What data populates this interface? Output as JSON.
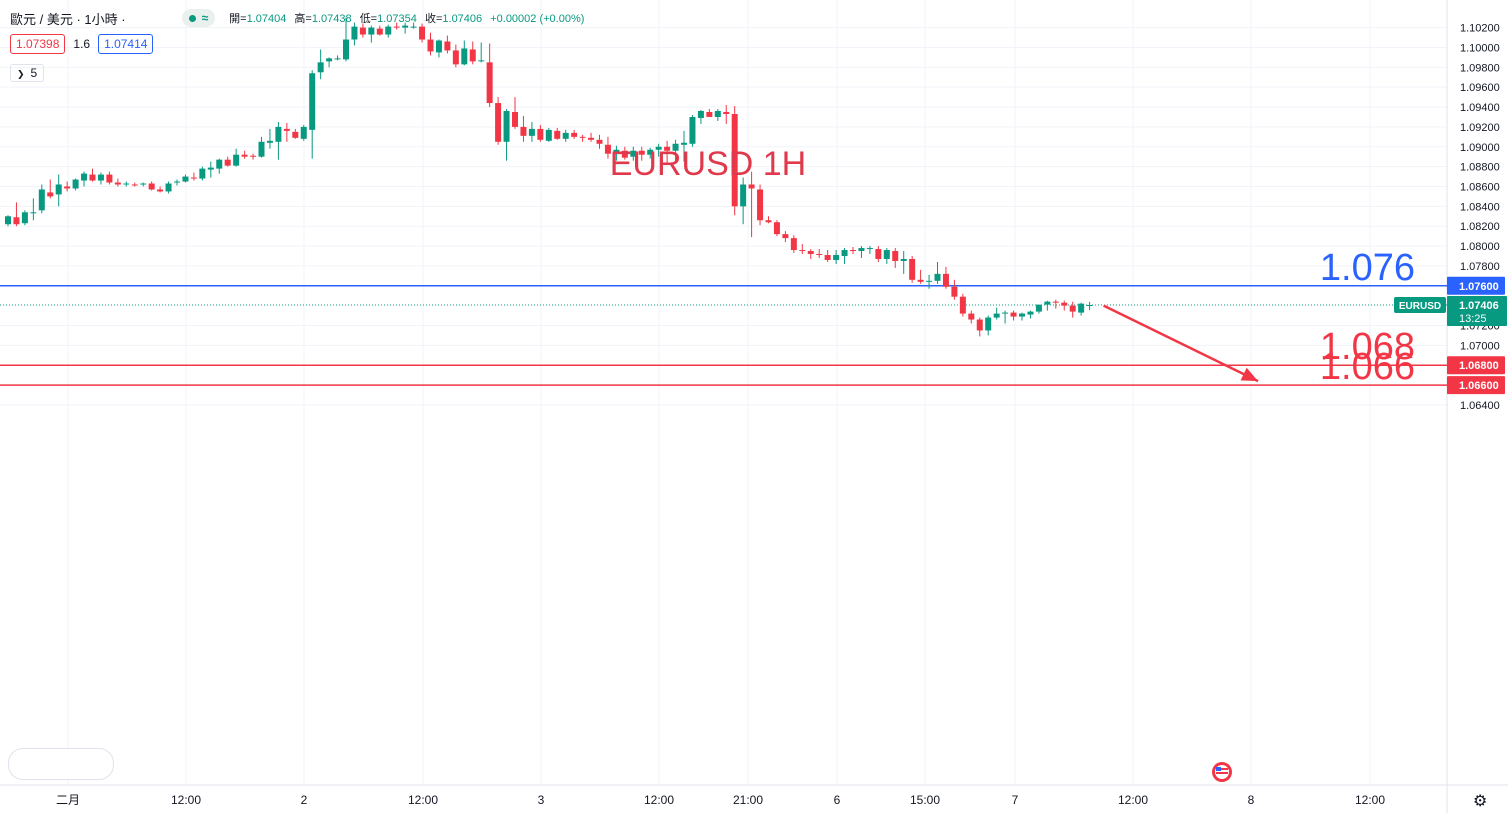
{
  "header": {
    "symbol": "歐元 / 美元 · 1小時 ·",
    "status_wave": "≈",
    "ohlc": [
      {
        "label": "開=",
        "value": "1.07404"
      },
      {
        "label": "高=",
        "value": "1.07438"
      },
      {
        "label": "低=",
        "value": "1.07354"
      },
      {
        "label": "收=",
        "value": "1.07406"
      },
      {
        "label": "",
        "value": "+0.00002 (+0.00%)"
      }
    ]
  },
  "quote": {
    "sell": "1.07398",
    "spread": "1.6",
    "buy": "1.07414"
  },
  "indicators_count": "5",
  "colors": {
    "up": "#089981",
    "down": "#f23645",
    "blue_line": "#2962ff",
    "red_line": "#f23645",
    "annotation": "#e0394c"
  },
  "chart_data": {
    "type": "candlestick",
    "title": "EURUSD 1H",
    "ylim": [
      1.064,
      1.1028
    ],
    "y_ticks": [
      "1.10200",
      "1.10000",
      "1.09800",
      "1.09600",
      "1.09400",
      "1.09200",
      "1.09000",
      "1.08800",
      "1.08600",
      "1.08400",
      "1.08200",
      "1.08000",
      "1.07800",
      "1.07200",
      "1.07000",
      "1.06400"
    ],
    "x_ticks": [
      "二月",
      "12:00",
      "2",
      "12:00",
      "3",
      "12:00",
      "21:00",
      "6",
      "15:00",
      "7",
      "12:00",
      "8",
      "12:00"
    ],
    "current_price": {
      "symbol": "EURUSD",
      "value": "1.07406",
      "countdown": "13:25",
      "price": 1.07406
    },
    "horizontal_levels": [
      {
        "label": "1.076",
        "axis_label": "1.07600",
        "value": 1.076,
        "color": "#2962ff"
      },
      {
        "label": "1.068",
        "axis_label": "1.06800",
        "value": 1.068,
        "color": "#f23645"
      },
      {
        "label": "1.066",
        "axis_label": "1.06600",
        "value": 1.066,
        "color": "#f23645"
      }
    ],
    "arrow": {
      "from": 1.074,
      "to": 1.0664,
      "color": "#f23645"
    },
    "candles": [
      [
        1.0822,
        1.0831,
        1.082,
        1.083
      ],
      [
        1.0829,
        1.0844,
        1.082,
        1.0822
      ],
      [
        1.0823,
        1.0836,
        1.0821,
        1.0834
      ],
      [
        1.0833,
        1.0848,
        1.0826,
        1.0834
      ],
      [
        1.0836,
        1.0862,
        1.0833,
        1.0857
      ],
      [
        1.0854,
        1.0867,
        1.0848,
        1.085
      ],
      [
        1.0852,
        1.0872,
        1.084,
        1.0862
      ],
      [
        1.086,
        1.0865,
        1.0855,
        1.0858
      ],
      [
        1.0858,
        1.0868,
        1.0856,
        1.0867
      ],
      [
        1.0866,
        1.0875,
        1.086,
        1.0873
      ],
      [
        1.0872,
        1.0878,
        1.0865,
        1.0866
      ],
      [
        1.0866,
        1.0874,
        1.0862,
        1.0872
      ],
      [
        1.0872,
        1.0875,
        1.0862,
        1.0864
      ],
      [
        1.0864,
        1.0868,
        1.086,
        1.0862
      ],
      [
        1.0862,
        1.0865,
        1.086,
        1.0863
      ],
      [
        1.0862,
        1.0864,
        1.086,
        1.0861
      ],
      [
        1.0862,
        1.0864,
        1.086,
        1.0863
      ],
      [
        1.0863,
        1.0865,
        1.0856,
        1.0857
      ],
      [
        1.0857,
        1.086,
        1.0854,
        1.0855
      ],
      [
        1.0855,
        1.0865,
        1.0853,
        1.0863
      ],
      [
        1.0864,
        1.0867,
        1.0861,
        1.0865
      ],
      [
        1.0865,
        1.0872,
        1.0864,
        1.087
      ],
      [
        1.0869,
        1.0874,
        1.0866,
        1.0868
      ],
      [
        1.0868,
        1.088,
        1.0866,
        1.0878
      ],
      [
        1.0877,
        1.0885,
        1.0869,
        1.0879
      ],
      [
        1.0878,
        1.0888,
        1.0873,
        1.0887
      ],
      [
        1.0887,
        1.089,
        1.088,
        1.0881
      ],
      [
        1.0881,
        1.0898,
        1.088,
        1.0892
      ],
      [
        1.0892,
        1.0896,
        1.0888,
        1.089
      ],
      [
        1.0891,
        1.0893,
        1.0887,
        1.089
      ],
      [
        1.089,
        1.091,
        1.0889,
        1.0905
      ],
      [
        1.0904,
        1.0918,
        1.0898,
        1.0906
      ],
      [
        1.0905,
        1.0925,
        1.0887,
        1.092
      ],
      [
        1.0918,
        1.0924,
        1.0905,
        1.0916
      ],
      [
        1.0915,
        1.0918,
        1.0908,
        1.0909
      ],
      [
        1.0908,
        1.0922,
        1.0906,
        1.092
      ],
      [
        1.0917,
        1.0977,
        1.0888,
        1.0974
      ],
      [
        1.0975,
        1.0998,
        1.0968,
        1.0985
      ],
      [
        1.0986,
        1.099,
        1.098,
        1.0989
      ],
      [
        1.0988,
        1.0992,
        1.0987,
        1.0989
      ],
      [
        1.0988,
        1.103,
        1.0986,
        1.1008
      ],
      [
        1.1008,
        1.1025,
        1.1002,
        1.1021
      ],
      [
        1.102,
        1.1024,
        1.101,
        1.1013
      ],
      [
        1.1013,
        1.1022,
        1.1005,
        1.102
      ],
      [
        1.1019,
        1.1022,
        1.1012,
        1.1013
      ],
      [
        1.1013,
        1.1023,
        1.101,
        1.1021
      ],
      [
        1.1021,
        1.1025,
        1.1018,
        1.102
      ],
      [
        1.102,
        1.1025,
        1.1014,
        1.1022
      ],
      [
        1.1021,
        1.1025,
        1.1019,
        1.1021
      ],
      [
        1.1021,
        1.1024,
        1.1005,
        1.1008
      ],
      [
        1.1008,
        1.1015,
        1.0992,
        1.0996
      ],
      [
        1.0995,
        1.1008,
        1.099,
        1.1007
      ],
      [
        1.1006,
        1.1012,
        1.0994,
        1.0997
      ],
      [
        1.0997,
        1.1003,
        1.098,
        1.0983
      ],
      [
        1.0983,
        1.1007,
        1.0982,
        1.0999
      ],
      [
        1.0998,
        1.1006,
        1.0983,
        1.0986
      ],
      [
        1.0987,
        1.1005,
        1.0985,
        1.0987
      ],
      [
        1.0985,
        1.1004,
        1.094,
        1.0944
      ],
      [
        1.0944,
        1.095,
        1.0902,
        1.0905
      ],
      [
        1.0905,
        1.0938,
        1.0886,
        1.0936
      ],
      [
        1.0935,
        1.095,
        1.0918,
        1.092
      ],
      [
        1.092,
        1.0931,
        1.0905,
        1.0911
      ],
      [
        1.0911,
        1.0925,
        1.0905,
        1.0918
      ],
      [
        1.0918,
        1.0922,
        1.0905,
        1.0907
      ],
      [
        1.0906,
        1.0919,
        1.0905,
        1.0917
      ],
      [
        1.0916,
        1.0919,
        1.0907,
        1.0908
      ],
      [
        1.0908,
        1.0917,
        1.0905,
        1.0914
      ],
      [
        1.0914,
        1.0917,
        1.0908,
        1.091
      ],
      [
        1.091,
        1.0912,
        1.0905,
        1.0909
      ],
      [
        1.0909,
        1.0914,
        1.0905,
        1.0907
      ],
      [
        1.0907,
        1.0912,
        1.0898,
        1.0903
      ],
      [
        1.0902,
        1.091,
        1.0888,
        1.0893
      ],
      [
        1.0893,
        1.0901,
        1.0886,
        1.0897
      ],
      [
        1.0896,
        1.09,
        1.0887,
        1.0889
      ],
      [
        1.089,
        1.09,
        1.0886,
        1.0896
      ],
      [
        1.0896,
        1.09,
        1.0886,
        1.0892
      ],
      [
        1.0892,
        1.0899,
        1.0888,
        1.0897
      ],
      [
        1.0897,
        1.0903,
        1.089,
        1.09
      ],
      [
        1.09,
        1.0906,
        1.0882,
        1.0896
      ],
      [
        1.0896,
        1.0907,
        1.0883,
        1.0903
      ],
      [
        1.0902,
        1.0916,
        1.0885,
        1.0904
      ],
      [
        1.0903,
        1.0932,
        1.09,
        1.093
      ],
      [
        1.0929,
        1.0937,
        1.0923,
        1.0936
      ],
      [
        1.0935,
        1.0938,
        1.093,
        1.093
      ],
      [
        1.093,
        1.0938,
        1.0926,
        1.0936
      ],
      [
        1.0935,
        1.0942,
        1.0923,
        1.0933
      ],
      [
        1.0933,
        1.0941,
        1.0831,
        1.084
      ],
      [
        1.084,
        1.0869,
        1.0822,
        1.0862
      ],
      [
        1.0862,
        1.0875,
        1.0809,
        1.0858
      ],
      [
        1.0857,
        1.0862,
        1.0821,
        1.0826
      ],
      [
        1.0826,
        1.083,
        1.0823,
        1.0824
      ],
      [
        1.0824,
        1.0826,
        1.081,
        1.0812
      ],
      [
        1.0812,
        1.0815,
        1.0804,
        1.0808
      ],
      [
        1.0808,
        1.0811,
        1.0793,
        1.0796
      ],
      [
        1.0796,
        1.0802,
        1.0792,
        1.0795
      ],
      [
        1.0795,
        1.0797,
        1.0787,
        1.0792
      ],
      [
        1.0792,
        1.0797,
        1.0788,
        1.0791
      ],
      [
        1.0791,
        1.0796,
        1.0784,
        1.0786
      ],
      [
        1.0786,
        1.0796,
        1.0782,
        1.0791
      ],
      [
        1.079,
        1.0798,
        1.0782,
        1.0796
      ],
      [
        1.0796,
        1.0799,
        1.0792,
        1.0795
      ],
      [
        1.0795,
        1.08,
        1.0788,
        1.0798
      ],
      [
        1.0797,
        1.08,
        1.0792,
        1.0798
      ],
      [
        1.0797,
        1.08,
        1.0784,
        1.0787
      ],
      [
        1.0787,
        1.0798,
        1.0782,
        1.0796
      ],
      [
        1.0795,
        1.0798,
        1.0778,
        1.0785
      ],
      [
        1.0785,
        1.0795,
        1.0772,
        1.0787
      ],
      [
        1.0787,
        1.079,
        1.0763,
        1.0766
      ],
      [
        1.0766,
        1.0776,
        1.0762,
        1.0764
      ],
      [
        1.0764,
        1.0771,
        1.0757,
        1.0765
      ],
      [
        1.0765,
        1.0784,
        1.0762,
        1.0772
      ],
      [
        1.0772,
        1.0779,
        1.0757,
        1.0759
      ],
      [
        1.0759,
        1.0766,
        1.0746,
        1.0749
      ],
      [
        1.0749,
        1.0752,
        1.0729,
        1.0732
      ],
      [
        1.0732,
        1.0735,
        1.0722,
        1.0726
      ],
      [
        1.0726,
        1.0728,
        1.0709,
        1.0715
      ],
      [
        1.0715,
        1.073,
        1.071,
        1.0728
      ],
      [
        1.0728,
        1.0738,
        1.0726,
        1.0732
      ],
      [
        1.0732,
        1.0735,
        1.0722,
        1.0733
      ],
      [
        1.0733,
        1.0735,
        1.0725,
        1.0729
      ],
      [
        1.0729,
        1.0733,
        1.0725,
        1.0732
      ],
      [
        1.0731,
        1.0735,
        1.0727,
        1.0734
      ],
      [
        1.0734,
        1.074,
        1.0732,
        1.0741
      ],
      [
        1.0741,
        1.0745,
        1.0735,
        1.0744
      ],
      [
        1.0744,
        1.0746,
        1.0737,
        1.0743
      ],
      [
        1.0743,
        1.0745,
        1.0735,
        1.074
      ],
      [
        1.074,
        1.0744,
        1.0728,
        1.0734
      ],
      [
        1.0733,
        1.0743,
        1.073,
        1.0742
      ],
      [
        1.07404,
        1.07438,
        1.07354,
        1.07406
      ]
    ]
  }
}
